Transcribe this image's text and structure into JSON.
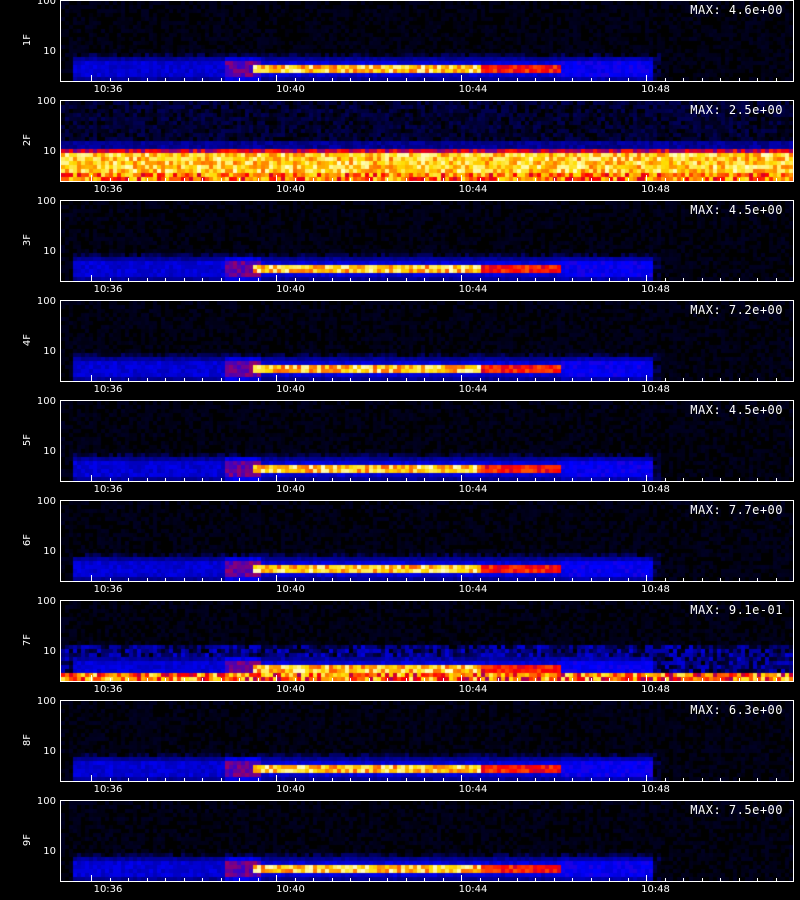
{
  "x_ticks": [
    "10:36",
    "10:40",
    "10:44",
    "10:48"
  ],
  "y_ticks": [
    "100",
    "10"
  ],
  "chart_data": [
    {
      "type": "heatmap",
      "ylabel": "1F",
      "max_label": "MAX: 4.6e+00",
      "max": 4.6,
      "mode": "burst",
      "xlim_minutes": [
        10.5833,
        26.7
      ],
      "ylim_log": [
        3,
        100
      ]
    },
    {
      "type": "heatmap",
      "ylabel": "2F",
      "max_label": "MAX: 2.5e+00",
      "max": 2.5,
      "mode": "band",
      "xlim_minutes": [
        10.5833,
        26.7
      ],
      "ylim_log": [
        3,
        100
      ]
    },
    {
      "type": "heatmap",
      "ylabel": "3F",
      "max_label": "MAX: 4.5e+00",
      "max": 4.5,
      "mode": "burst",
      "xlim_minutes": [
        10.5833,
        26.7
      ],
      "ylim_log": [
        3,
        100
      ]
    },
    {
      "type": "heatmap",
      "ylabel": "4F",
      "max_label": "MAX: 7.2e+00",
      "max": 7.2,
      "mode": "burst",
      "xlim_minutes": [
        10.5833,
        26.7
      ],
      "ylim_log": [
        3,
        100
      ]
    },
    {
      "type": "heatmap",
      "ylabel": "5F",
      "max_label": "MAX: 4.5e+00",
      "max": 4.5,
      "mode": "burst",
      "xlim_minutes": [
        10.5833,
        26.7
      ],
      "ylim_log": [
        3,
        100
      ]
    },
    {
      "type": "heatmap",
      "ylabel": "6F",
      "max_label": "MAX: 7.7e+00",
      "max": 7.7,
      "mode": "burst",
      "xlim_minutes": [
        10.5833,
        26.7
      ],
      "ylim_log": [
        3,
        100
      ]
    },
    {
      "type": "heatmap",
      "ylabel": "7F",
      "max_label": "MAX: 9.1e-01",
      "max": 0.91,
      "mode": "noisy",
      "xlim_minutes": [
        10.5833,
        26.7
      ],
      "ylim_log": [
        3,
        100
      ]
    },
    {
      "type": "heatmap",
      "ylabel": "8F",
      "max_label": "MAX: 6.3e+00",
      "max": 6.3,
      "mode": "burst",
      "xlim_minutes": [
        10.5833,
        26.7
      ],
      "ylim_log": [
        3,
        100
      ]
    },
    {
      "type": "heatmap",
      "ylabel": "9F",
      "max_label": "MAX: 7.5e+00",
      "max": 7.5,
      "mode": "burst",
      "xlim_minutes": [
        10.5833,
        26.7
      ],
      "ylim_log": [
        3,
        100
      ]
    }
  ],
  "colors": {
    "low": "#000000",
    "mid": "#1a1aff",
    "high": "#ff2200",
    "peak": "#ffff80"
  }
}
